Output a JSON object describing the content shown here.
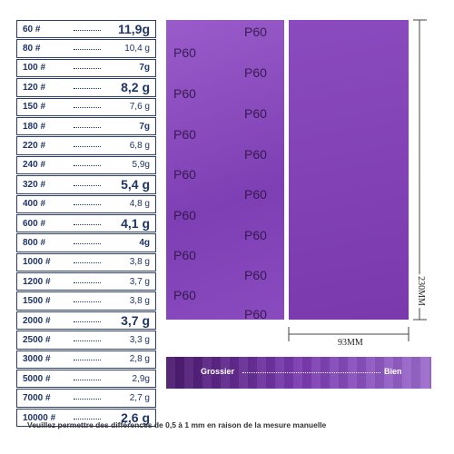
{
  "weights": {
    "rows": [
      [
        "60 #",
        "11,9g"
      ],
      [
        "80 #",
        "10,4 g"
      ],
      [
        "100 #",
        "7g"
      ],
      [
        "120 #",
        "8,2 g"
      ],
      [
        "150 #",
        "7,6 g"
      ],
      [
        "180 #",
        "7g"
      ],
      [
        "220 #",
        "6,8 g"
      ],
      [
        "240 #",
        "5,9g"
      ],
      [
        "320 #",
        "5,4 g"
      ],
      [
        "400 #",
        "4,8 g"
      ],
      [
        "600 #",
        "4,1 g"
      ],
      [
        "800 #",
        "4g"
      ],
      [
        "1000 #",
        "3,8 g"
      ],
      [
        "1200 #",
        "3,7 g"
      ],
      [
        "1500 #",
        "3,8 g"
      ],
      [
        "2000 #",
        "3,7 g"
      ],
      [
        "2500 #",
        "3,3 g"
      ],
      [
        "3000 #",
        "2,8 g"
      ],
      [
        "5000 #",
        "2,9g"
      ],
      [
        "7000 #",
        "2,7 g"
      ],
      [
        "10000 #",
        "2,6 g"
      ]
    ]
  },
  "sheet": {
    "label": "P60",
    "height": "230MM",
    "width": "93MM"
  },
  "scale": {
    "left": "Grossier",
    "right": "Bien"
  },
  "footer": "Veuillez permettre des différences de 0,5 à 1 mm en raison de la mesure manuelle"
}
